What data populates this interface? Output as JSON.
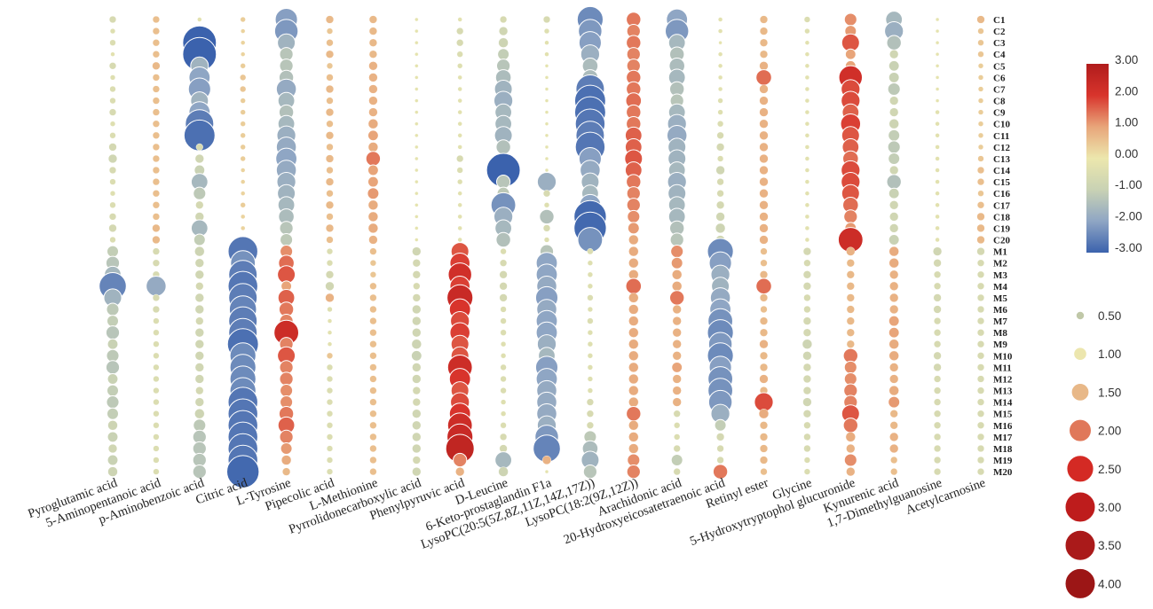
{
  "chart_data": {
    "type": "bubble-heatmap",
    "metabolites": [
      "Pyroglutamic acid",
      "5-Aminopentanoic acid",
      "p-Aminobenzoic acid",
      "Citric acid",
      "L-Tyrosine",
      "Pipecolic acid",
      "L-Methionine",
      "Pyrrolidonecarboxylic acid",
      "Phenylpyruvic acid",
      "D-Leucine",
      "6-Keto-prostaglandin F1a",
      "LysoPC(20:5(5Z,8Z,11Z,14Z,17Z))",
      "LysoPC(18:2(9Z,12Z))",
      "Arachidonic acid",
      "20-Hydroxyeicosatetraenoic acid",
      "Retinyl ester",
      "Glycine",
      "5-Hydroxytryptophol glucuronide",
      "Kynurenic acid",
      "1,7-Dimethylguanosine",
      "Acetylcarnosine"
    ],
    "samples": [
      "C1",
      "C2",
      "C3",
      "C4",
      "C5",
      "C6",
      "C7",
      "C8",
      "C9",
      "C10",
      "C11",
      "C12",
      "C13",
      "C14",
      "C15",
      "C16",
      "C17",
      "C18",
      "C19",
      "C20",
      "M1",
      "M2",
      "M3",
      "M4",
      "M5",
      "M6",
      "M7",
      "M8",
      "M9",
      "M10",
      "M11",
      "M12",
      "M13",
      "M14",
      "M15",
      "M16",
      "M17",
      "M18",
      "M19",
      "M20"
    ],
    "color_scale": {
      "min": -3.0,
      "max": 3.0,
      "ticks": [
        "3.00",
        "2.00",
        "1.00",
        "0.00",
        "-1.00",
        "-2.00",
        "-3.00"
      ],
      "colors": [
        "#3b62ad",
        "#8fa6c4",
        "#c9d2b4",
        "#ece7ad",
        "#e8a57a",
        "#d8342c",
        "#b01c1c"
      ]
    },
    "size_legend": [
      "0.50",
      "1.00",
      "1.50",
      "2.00",
      "2.50",
      "3.00",
      "3.50",
      "4.00"
    ],
    "size_legend_colors": [
      "#c0c8a8",
      "#ece6ae",
      "#e8b888",
      "#e0785a",
      "#d42a24",
      "#be1c1c",
      "#aa1a1a",
      "#9c1616"
    ],
    "profiles": {
      "Pyroglutamic acid": {
        "c": [
          -0.6,
          -0.4,
          -0.5,
          -0.3,
          -0.6,
          -0.4,
          -0.5,
          -0.5,
          -0.6,
          -0.4,
          -0.5,
          -0.7,
          -0.8,
          -0.6,
          -0.5,
          -0.4,
          -0.5,
          -0.6,
          -0.7,
          -0.5
        ],
        "m": [
          -1.1,
          -1.3,
          -1.6,
          -2.5,
          -1.7,
          -1.2,
          -1.1,
          -1.3,
          -1.0,
          -1.2,
          -1.3,
          -1.0,
          -1.1,
          -1.2,
          -1.1,
          -0.9,
          -1.0,
          -0.8,
          -1.0,
          -0.9
        ]
      },
      "5-Aminopentanoic acid": {
        "c": [
          0.6,
          0.6,
          0.6,
          0.6,
          0.7,
          0.6,
          0.6,
          0.6,
          0.6,
          0.6,
          0.6,
          0.6,
          0.6,
          0.6,
          0.6,
          0.6,
          0.6,
          0.6,
          0.7,
          0.7
        ],
        "m": [
          -0.6,
          -0.6,
          -0.6,
          -1.9,
          -0.6,
          -0.6,
          -0.5,
          -0.5,
          -0.5,
          -0.5,
          -0.5,
          -0.5,
          -0.5,
          -0.5,
          -0.5,
          -0.5,
          -0.5,
          -0.5,
          -0.5,
          -0.5
        ]
      },
      "p-Aminobenzoic acid": {
        "c": [
          -0.3,
          -0.5,
          -3.0,
          -3.0,
          -1.7,
          -2.0,
          -2.1,
          -1.7,
          -2.0,
          -2.6,
          -2.8,
          -0.6,
          -0.8,
          -1.0,
          -1.6,
          -1.2,
          -0.7,
          -0.8,
          -1.6,
          -1.1
        ],
        "m": [
          -0.9,
          -0.8,
          -0.8,
          -0.7,
          -0.8,
          -0.8,
          -0.7,
          -0.8,
          -0.8,
          -0.8,
          -0.8,
          -0.8,
          -0.7,
          -0.8,
          -0.9,
          -1.2,
          -1.3,
          -1.3,
          -1.3,
          -1.3
        ]
      },
      "Citric acid": {
        "c": [
          0.4,
          0.3,
          0.3,
          0.3,
          0.4,
          0.5,
          0.5,
          0.4,
          0.4,
          0.4,
          0.4,
          0.4,
          0.4,
          0.3,
          0.3,
          0.3,
          0.4,
          0.3,
          0.3,
          0.3
        ],
        "m": [
          -2.7,
          -2.3,
          -2.6,
          -2.7,
          -2.6,
          -2.5,
          -2.6,
          -2.6,
          -2.8,
          -2.4,
          -2.4,
          -2.4,
          -2.4,
          -2.7,
          -2.7,
          -2.7,
          -2.7,
          -2.7,
          -2.7,
          -2.9
        ]
      },
      "L-Tyrosine": {
        "c": [
          -2.1,
          -2.2,
          -1.7,
          -1.3,
          -1.3,
          -1.4,
          -1.9,
          -1.6,
          -1.4,
          -1.6,
          -1.8,
          -1.9,
          -2.0,
          -1.9,
          -1.8,
          -1.7,
          -1.6,
          -1.5,
          -1.3,
          -1.2
        ],
        "m": [
          1.2,
          1.5,
          1.7,
          1.0,
          1.6,
          1.4,
          1.3,
          2.3,
          1.3,
          1.7,
          1.3,
          1.3,
          1.2,
          1.2,
          1.4,
          1.6,
          1.3,
          1.1,
          0.9,
          0.7
        ]
      },
      "Pipecolic acid": {
        "c": [
          0.7,
          0.5,
          0.6,
          0.7,
          0.5,
          0.6,
          0.7,
          0.6,
          0.7,
          0.6,
          0.7,
          0.6,
          0.7,
          0.6,
          0.7,
          0.6,
          0.7,
          0.6,
          0.7,
          0.6
        ],
        "m": [
          -0.5,
          -0.5,
          -0.7,
          -0.8,
          0.8,
          -0.4,
          -0.3,
          -0.3,
          -0.3,
          0.5,
          -0.5,
          -0.5,
          -0.5,
          -0.5,
          -0.5,
          -0.5,
          -0.5,
          -0.5,
          -0.5,
          -0.5
        ]
      },
      "L-Methionine": {
        "c": [
          0.7,
          0.7,
          0.7,
          0.7,
          0.8,
          0.8,
          0.8,
          0.8,
          0.8,
          0.9,
          1.0,
          0.9,
          1.4,
          1.0,
          1.0,
          1.1,
          0.9,
          0.9,
          0.9,
          0.8
        ],
        "m": [
          0.6,
          0.5,
          0.5,
          0.6,
          0.6,
          0.6,
          0.6,
          0.6,
          0.6,
          0.6,
          0.6,
          0.6,
          0.6,
          0.6,
          0.6,
          0.6,
          0.6,
          0.6,
          0.6,
          0.6
        ]
      },
      "Pyrrolidonecarboxylic acid": {
        "c": [
          -0.2,
          -0.2,
          -0.2,
          -0.2,
          -0.2,
          -0.2,
          -0.2,
          -0.2,
          -0.2,
          -0.2,
          -0.2,
          -0.2,
          -0.2,
          -0.2,
          -0.2,
          -0.2,
          -0.2,
          -0.2,
          -0.2,
          -0.2
        ],
        "m": [
          -0.8,
          -0.7,
          -0.7,
          -0.6,
          -0.7,
          -0.8,
          -0.8,
          -0.8,
          -0.9,
          -1.0,
          -0.8,
          -0.8,
          -0.7,
          -0.7,
          -0.8,
          -0.8,
          -0.8,
          -0.8,
          -0.7,
          -0.8
        ]
      },
      "Phenylpyruvic acid": {
        "c": [
          -0.3,
          -0.6,
          -0.6,
          -0.5,
          -0.4,
          -0.3,
          -0.3,
          -0.3,
          -0.3,
          -0.3,
          -0.3,
          -0.3,
          -0.6,
          -0.5,
          -0.4,
          -0.3,
          -0.3,
          -0.3,
          -0.3,
          -0.3
        ],
        "m": [
          1.7,
          1.9,
          2.2,
          1.9,
          2.4,
          2.0,
          1.8,
          1.9,
          1.7,
          1.7,
          2.3,
          2.0,
          1.7,
          1.8,
          2.0,
          2.3,
          2.4,
          2.6,
          1.3,
          0.8
        ]
      },
      "D-Leucine": {
        "c": [
          -0.6,
          -0.8,
          -0.9,
          -1.1,
          -1.3,
          -1.5,
          -1.7,
          -1.8,
          -1.6,
          -1.6,
          -1.7,
          -1.4,
          -0.9,
          -3.0,
          -1.3,
          -1.2,
          -2.3,
          -1.8,
          -1.6,
          -1.4
        ],
        "m": [
          -0.5,
          -0.6,
          -0.7,
          -0.7,
          -0.7,
          -0.5,
          -0.5,
          -0.5,
          -0.4,
          -0.4,
          -0.5,
          -0.5,
          -0.5,
          -0.4,
          -0.4,
          -0.5,
          -0.6,
          -0.7,
          -1.6,
          -0.9
        ]
      },
      "6-Keto-prostaglandin F1a": {
        "c": [
          -0.6,
          -0.4,
          -0.3,
          -0.3,
          -0.2,
          -0.2,
          -0.2,
          -0.2,
          -0.2,
          -0.2,
          -0.2,
          -0.2,
          -0.2,
          -0.2,
          -1.8,
          -0.6,
          -0.4,
          -1.4,
          -0.6,
          -0.4
        ],
        "m": [
          -1.3,
          -2.0,
          -2.0,
          -1.9,
          -2.1,
          -1.9,
          -2.0,
          -2.0,
          -1.8,
          -1.6,
          -2.1,
          -2.0,
          -1.9,
          -1.9,
          -1.9,
          -1.8,
          -2.2,
          -2.5,
          0.8,
          -0.2
        ]
      },
      "LysoPC(20:5(5Z,8Z,11Z,14Z,17Z))": {
        "c": [
          -2.4,
          -2.2,
          -2.1,
          -1.8,
          -1.5,
          -1.5,
          -2.6,
          -2.8,
          -2.8,
          -2.7,
          -2.6,
          -2.7,
          -2.1,
          -1.9,
          -1.7,
          -1.6,
          -2.0,
          -2.9,
          -2.9,
          -2.3
        ],
        "m": [
          -0.5,
          -0.4,
          -0.4,
          -0.4,
          -0.5,
          -0.4,
          -0.5,
          -0.4,
          -0.4,
          -0.4,
          -0.4,
          -0.4,
          -0.4,
          -0.6,
          -0.6,
          -0.6,
          -1.2,
          -1.5,
          -1.7,
          -1.3
        ]
      },
      "LysoPC(18:2(9Z,12Z))": {
        "c": [
          1.4,
          1.3,
          1.4,
          1.3,
          1.3,
          1.4,
          1.4,
          1.5,
          1.4,
          1.4,
          1.6,
          1.6,
          1.7,
          1.6,
          1.4,
          1.3,
          1.3,
          1.2,
          1.1,
          0.9
        ],
        "m": [
          0.9,
          0.9,
          0.9,
          1.5,
          0.9,
          0.9,
          0.9,
          0.9,
          0.9,
          0.9,
          0.9,
          0.9,
          0.9,
          0.9,
          1.4,
          0.9,
          0.9,
          0.9,
          1.2,
          1.3
        ]
      },
      "Arachidonic acid": {
        "c": [
          -2.0,
          -2.2,
          -1.6,
          -1.4,
          -1.5,
          -1.6,
          -1.4,
          -1.3,
          -1.6,
          -1.8,
          -1.9,
          -1.7,
          -1.7,
          -1.6,
          -1.8,
          -1.7,
          -1.6,
          -1.6,
          -1.4,
          -1.3
        ],
        "m": [
          1.2,
          1.1,
          0.9,
          0.9,
          1.4,
          0.8,
          0.8,
          0.8,
          0.8,
          0.8,
          1.0,
          0.8,
          0.8,
          0.8,
          -0.6,
          -0.5,
          -0.5,
          -0.6,
          -1.1,
          -0.6
        ]
      },
      "20-Hydroxyeicosatetraenoic acid": {
        "c": [
          -0.3,
          -0.3,
          -0.2,
          -0.3,
          -0.3,
          -0.3,
          -0.3,
          -0.4,
          -0.4,
          -0.5,
          -0.6,
          -0.7,
          -0.5,
          -0.8,
          -0.6,
          -0.6,
          -0.7,
          -0.8,
          -0.9,
          -0.8
        ],
        "m": [
          -2.4,
          -2.1,
          -1.8,
          -1.7,
          -1.9,
          -2.0,
          -2.3,
          -2.4,
          -2.2,
          -2.4,
          -2.1,
          -2.3,
          -2.3,
          -2.2,
          -1.8,
          -1.1,
          -0.7,
          -0.6,
          -0.6,
          1.4
        ]
      },
      "Retinyl ester": {
        "c": [
          0.7,
          0.7,
          0.7,
          0.7,
          0.8,
          1.5,
          0.8,
          0.8,
          0.8,
          0.8,
          0.8,
          0.8,
          0.8,
          0.8,
          0.8,
          0.8,
          0.8,
          0.8,
          0.8,
          0.8
        ],
        "m": [
          0.6,
          0.6,
          0.7,
          1.5,
          0.7,
          0.6,
          0.7,
          0.7,
          0.8,
          0.7,
          0.7,
          0.8,
          0.7,
          1.8,
          0.9,
          0.7,
          0.7,
          0.7,
          0.7,
          0.6
        ]
      },
      "Glycine": {
        "c": [
          -0.5,
          -0.4,
          -0.3,
          -0.3,
          -0.3,
          -0.3,
          -0.3,
          -0.3,
          -0.3,
          -0.3,
          -0.3,
          -0.3,
          -0.3,
          -0.3,
          -0.3,
          -0.3,
          -0.3,
          -0.3,
          -0.3,
          -0.3
        ],
        "m": [
          -0.7,
          -0.6,
          -0.7,
          -0.7,
          -0.6,
          -0.6,
          -0.7,
          -0.7,
          -0.9,
          -0.8,
          -0.7,
          -0.7,
          -0.7,
          -0.8,
          -0.7,
          -0.6,
          -0.6,
          -0.6,
          -0.5,
          -0.5
        ]
      },
      "5-Hydroxytryptophol glucuronide": {
        "c": [
          1.2,
          1.1,
          1.7,
          1.0,
          1.0,
          2.2,
          1.8,
          1.8,
          1.6,
          1.9,
          1.7,
          1.6,
          1.5,
          1.8,
          1.8,
          1.7,
          1.5,
          1.3,
          1.1,
          2.3
        ],
        "m": [
          0.8,
          0.7,
          0.7,
          0.7,
          0.7,
          0.7,
          0.7,
          0.7,
          0.7,
          1.4,
          1.2,
          1.2,
          1.3,
          1.3,
          1.7,
          1.4,
          0.9,
          0.8,
          1.2,
          0.8
        ]
      },
      "Kynurenic acid": {
        "c": [
          -1.6,
          -1.8,
          -1.4,
          -0.8,
          -1.0,
          -1.0,
          -1.2,
          -0.8,
          -0.8,
          -0.9,
          -1.1,
          -1.2,
          -1.1,
          -0.8,
          -1.4,
          -1.0,
          -0.8,
          -0.8,
          -0.8,
          -1.0
        ],
        "m": [
          0.9,
          0.9,
          0.8,
          0.8,
          0.8,
          0.8,
          1.0,
          1.0,
          0.9,
          0.9,
          0.8,
          0.8,
          0.9,
          1.1,
          0.7,
          0.7,
          0.8,
          0.8,
          0.6,
          0.6
        ]
      },
      "1,7-Dimethylguanosine": {
        "c": [
          -0.2,
          -0.2,
          -0.2,
          -0.2,
          -0.2,
          -0.2,
          -0.2,
          -0.2,
          -0.3,
          -0.3,
          -0.3,
          -0.3,
          -0.3,
          -0.3,
          -0.3,
          -0.3,
          -0.3,
          -0.3,
          -0.3,
          -0.3
        ],
        "m": [
          -0.8,
          -0.7,
          -0.6,
          -0.6,
          -0.7,
          -0.7,
          -0.6,
          -0.6,
          -0.6,
          -0.7,
          -0.7,
          -0.6,
          -0.6,
          -0.6,
          -0.6,
          -0.6,
          -0.6,
          -0.6,
          -0.6,
          -0.6
        ]
      },
      "Acetylcarnosine": {
        "c": [
          0.7,
          0.5,
          0.5,
          0.5,
          0.4,
          0.4,
          0.4,
          0.4,
          0.4,
          0.4,
          0.4,
          0.4,
          0.5,
          0.6,
          0.6,
          0.5,
          0.6,
          0.7,
          0.7,
          0.7
        ],
        "m": [
          -0.7,
          -0.6,
          -0.6,
          -0.6,
          -0.6,
          -0.6,
          -0.6,
          -0.6,
          -0.6,
          -0.6,
          -0.6,
          -0.6,
          -0.6,
          -0.6,
          -0.6,
          -0.6,
          -0.6,
          -0.6,
          -0.6,
          -0.6
        ]
      }
    }
  }
}
